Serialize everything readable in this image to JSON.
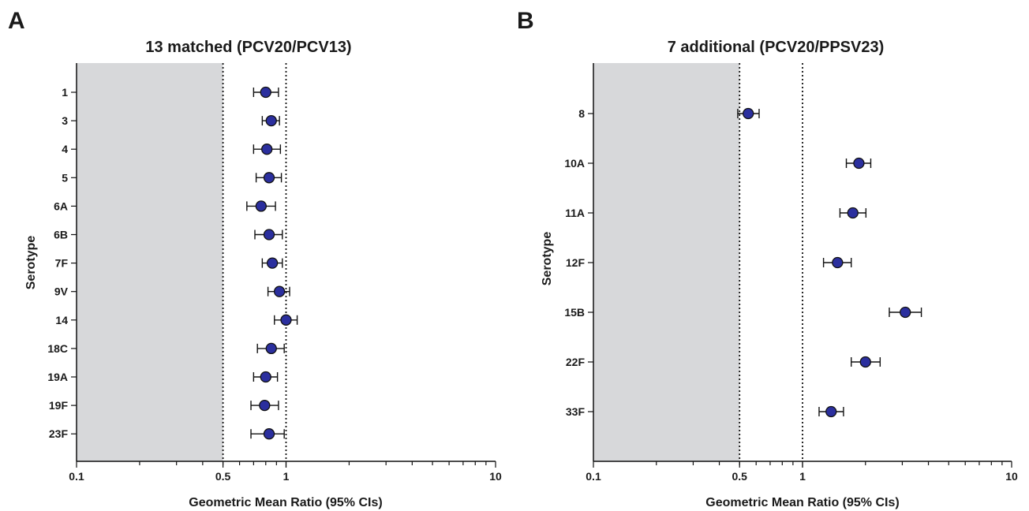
{
  "chart_data": [
    {
      "panel": "A",
      "type": "scatter",
      "title": "13 matched (PCV20/PCV13)",
      "xlabel": "Geometric Mean Ratio (95% CIs)",
      "ylabel": "Serotype",
      "x_scale": "log",
      "xlim": [
        0.1,
        10
      ],
      "xticks": [
        0.1,
        0.5,
        1,
        10
      ],
      "xtick_labels": [
        "0.1",
        "0.5",
        "1",
        "10"
      ],
      "shaded_region": [
        0.1,
        0.5
      ],
      "reference_lines": [
        0.5,
        1
      ],
      "marker_color": "#2b2f9e",
      "shade_color": "#d7d8da",
      "categories": [
        "1",
        "3",
        "4",
        "5",
        "6A",
        "6B",
        "7F",
        "9V",
        "14",
        "18C",
        "19A",
        "19F",
        "23F"
      ],
      "points": [
        {
          "serotype": "1",
          "gmr": 0.8,
          "lower": 0.7,
          "upper": 0.92
        },
        {
          "serotype": "3",
          "gmr": 0.85,
          "lower": 0.77,
          "upper": 0.93
        },
        {
          "serotype": "4",
          "gmr": 0.81,
          "lower": 0.7,
          "upper": 0.94
        },
        {
          "serotype": "5",
          "gmr": 0.83,
          "lower": 0.72,
          "upper": 0.95
        },
        {
          "serotype": "6A",
          "gmr": 0.76,
          "lower": 0.65,
          "upper": 0.89
        },
        {
          "serotype": "6B",
          "gmr": 0.83,
          "lower": 0.71,
          "upper": 0.96
        },
        {
          "serotype": "7F",
          "gmr": 0.86,
          "lower": 0.77,
          "upper": 0.96
        },
        {
          "serotype": "9V",
          "gmr": 0.93,
          "lower": 0.82,
          "upper": 1.04
        },
        {
          "serotype": "14",
          "gmr": 1.0,
          "lower": 0.88,
          "upper": 1.13
        },
        {
          "serotype": "18C",
          "gmr": 0.85,
          "lower": 0.73,
          "upper": 0.98
        },
        {
          "serotype": "19A",
          "gmr": 0.8,
          "lower": 0.7,
          "upper": 0.91
        },
        {
          "serotype": "19F",
          "gmr": 0.79,
          "lower": 0.68,
          "upper": 0.92
        },
        {
          "serotype": "23F",
          "gmr": 0.83,
          "lower": 0.68,
          "upper": 0.98
        }
      ]
    },
    {
      "panel": "B",
      "type": "scatter",
      "title": "7 additional (PCV20/PPSV23)",
      "xlabel": "Geometric Mean Ratio (95% CIs)",
      "ylabel": "Serotype",
      "x_scale": "log",
      "xlim": [
        0.1,
        10
      ],
      "xticks": [
        0.1,
        0.5,
        1,
        10
      ],
      "xtick_labels": [
        "0.1",
        "0.5",
        "1",
        "10"
      ],
      "shaded_region": [
        0.1,
        0.5
      ],
      "reference_lines": [
        0.5,
        1
      ],
      "marker_color": "#2b2f9e",
      "shade_color": "#d7d8da",
      "categories": [
        "8",
        "10A",
        "11A",
        "12F",
        "15B",
        "22F",
        "33F"
      ],
      "points": [
        {
          "serotype": "8",
          "gmr": 0.55,
          "lower": 0.49,
          "upper": 0.62
        },
        {
          "serotype": "10A",
          "gmr": 1.86,
          "lower": 1.62,
          "upper": 2.12
        },
        {
          "serotype": "11A",
          "gmr": 1.74,
          "lower": 1.51,
          "upper": 2.01
        },
        {
          "serotype": "12F",
          "gmr": 1.47,
          "lower": 1.26,
          "upper": 1.71
        },
        {
          "serotype": "15B",
          "gmr": 3.1,
          "lower": 2.6,
          "upper": 3.7
        },
        {
          "serotype": "22F",
          "gmr": 2.0,
          "lower": 1.71,
          "upper": 2.35
        },
        {
          "serotype": "33F",
          "gmr": 1.37,
          "lower": 1.2,
          "upper": 1.57
        }
      ]
    }
  ]
}
